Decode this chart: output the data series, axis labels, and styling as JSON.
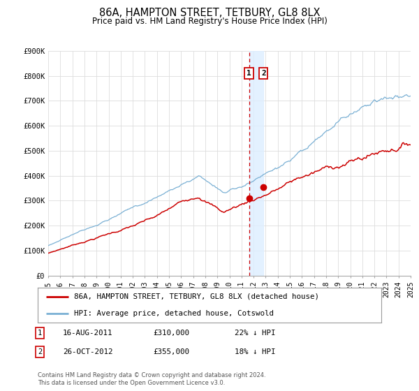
{
  "title": "86A, HAMPTON STREET, TETBURY, GL8 8LX",
  "subtitle": "Price paid vs. HM Land Registry's House Price Index (HPI)",
  "xlim": [
    1995,
    2025
  ],
  "ylim": [
    0,
    900000
  ],
  "yticks": [
    0,
    100000,
    200000,
    300000,
    400000,
    500000,
    600000,
    700000,
    800000,
    900000
  ],
  "ytick_labels": [
    "£0",
    "£100K",
    "£200K",
    "£300K",
    "£400K",
    "£500K",
    "£600K",
    "£700K",
    "£800K",
    "£900K"
  ],
  "xticks": [
    1995,
    1996,
    1997,
    1998,
    1999,
    2000,
    2001,
    2002,
    2003,
    2004,
    2005,
    2006,
    2007,
    2008,
    2009,
    2010,
    2011,
    2012,
    2013,
    2014,
    2015,
    2016,
    2017,
    2018,
    2019,
    2020,
    2021,
    2022,
    2023,
    2024,
    2025
  ],
  "red_line_color": "#cc0000",
  "blue_line_color": "#7ab0d4",
  "sale1_x": 2011.625,
  "sale1_y": 310000,
  "sale2_x": 2012.82,
  "sale2_y": 355000,
  "vline_x": 2011.625,
  "shade_x1": 2011.625,
  "shade_x2": 2012.82,
  "legend_label_red": "86A, HAMPTON STREET, TETBURY, GL8 8LX (detached house)",
  "legend_label_blue": "HPI: Average price, detached house, Cotswold",
  "note1_date": "16-AUG-2011",
  "note1_price": "£310,000",
  "note1_pct": "22% ↓ HPI",
  "note2_date": "26-OCT-2012",
  "note2_price": "£355,000",
  "note2_pct": "18% ↓ HPI",
  "footer": "Contains HM Land Registry data © Crown copyright and database right 2024.\nThis data is licensed under the Open Government Licence v3.0.",
  "background_color": "#ffffff",
  "grid_color": "#dddddd"
}
